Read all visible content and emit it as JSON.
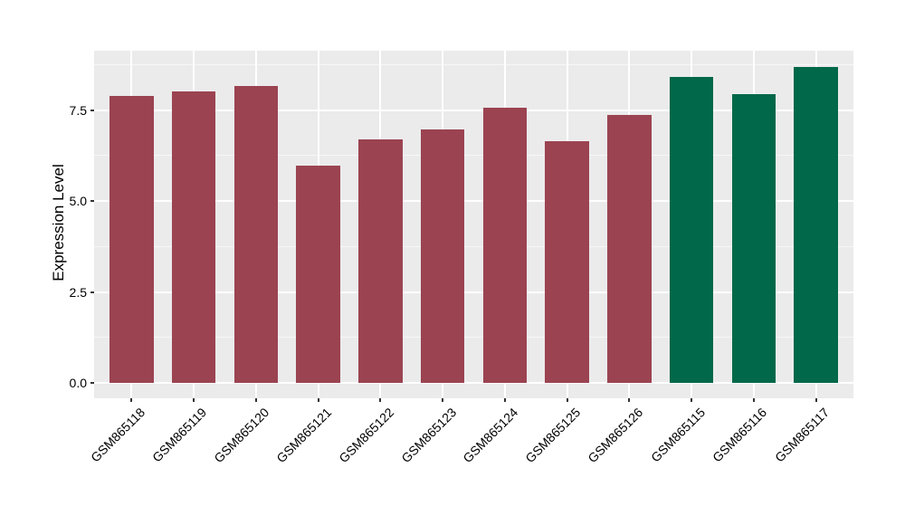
{
  "chart_data": {
    "type": "bar",
    "title": "",
    "xlabel": "",
    "ylabel": "Expression Level",
    "categories": [
      "GSM865118",
      "GSM865119",
      "GSM865120",
      "GSM865121",
      "GSM865122",
      "GSM865123",
      "GSM865124",
      "GSM865125",
      "GSM865126",
      "GSM865115",
      "GSM865116",
      "GSM865117"
    ],
    "values": [
      7.88,
      8.0,
      8.16,
      5.98,
      6.7,
      6.96,
      7.56,
      6.63,
      7.36,
      8.41,
      7.94,
      8.67
    ],
    "bar_colors": [
      "#9B4351",
      "#9B4351",
      "#9B4351",
      "#9B4351",
      "#9B4351",
      "#9B4351",
      "#9B4351",
      "#9B4351",
      "#9B4351",
      "#016849",
      "#016849",
      "#016849"
    ],
    "group_colors": {
      "maroon_group": "#9B4351",
      "green_group": "#016849"
    },
    "yticks": {
      "values": [
        0,
        2.5,
        5,
        7.5
      ],
      "labels": [
        "0.0",
        "2.5",
        "5.0",
        "7.5"
      ]
    },
    "yticks_minor": [
      1.25,
      3.75,
      6.25,
      8.75
    ],
    "ylim": [
      -0.45,
      9.13
    ],
    "grid": "horizontal major+minor, vertical major at category centers",
    "legend": "none",
    "panel_bg": "#EBEBEB",
    "grid_major_color": "#FFFFFF",
    "grid_minor_color": "#F7F7F7",
    "tick_color": "#333333",
    "text_color": "#000000"
  }
}
